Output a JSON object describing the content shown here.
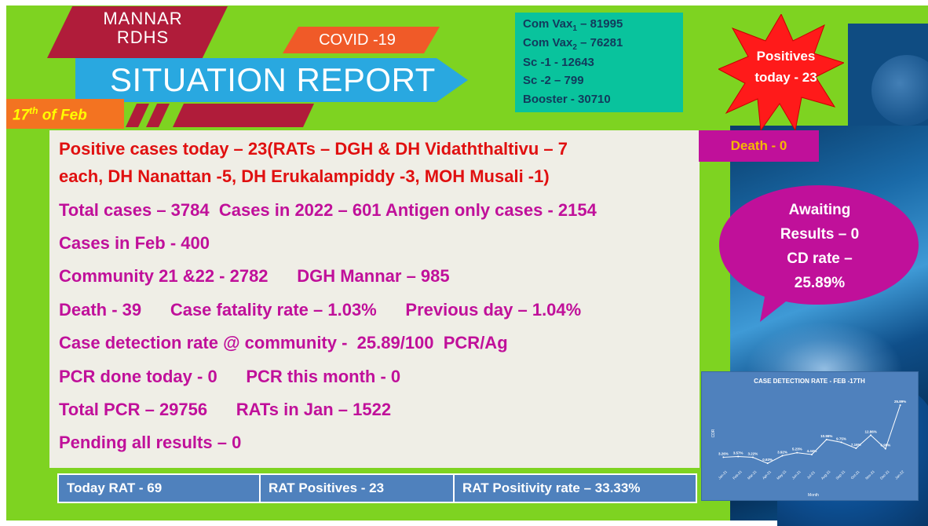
{
  "header": {
    "org_line1": "MANNAR",
    "org_line2": "RDHS",
    "covid_label": "COVID -19",
    "title": "SITUATION REPORT",
    "date_day": "17",
    "date_sup": "th",
    "date_rest": " of Feb"
  },
  "vaccination": {
    "com_vax1_prefix": "Com Vax",
    "com_vax1_sub": "1",
    "com_vax1_value": " – 81995",
    "com_vax2_prefix": "Com Vax",
    "com_vax2_sub": "2",
    "com_vax2_value": " – 76281",
    "sc1": "Sc -1 - 12643",
    "sc2": "Sc -2 – 799",
    "booster": "Booster - 30710"
  },
  "starburst": {
    "line1": "Positives",
    "line2": "today - 23"
  },
  "death_badge": "Death - 0",
  "bubble": {
    "line1": "Awaiting",
    "line2": "Results – 0",
    "line3": "CD rate –",
    "line4": "25.89%"
  },
  "report_lines": {
    "positive_today_1": "Positive cases today – 23(RATs – DGH & DH Vidaththaltivu – 7",
    "positive_today_2": "each, DH Nanattan -5, DH Erukalampiddy -3, MOH Musali -1)",
    "totals": "Total cases – 3784  Cases in 2022 – 601 Antigen only cases - 2154",
    "cases_feb": "Cases in Feb - 400",
    "community": "Community 21 &22 - 2782      DGH Mannar – 985",
    "death": "Death - 39      Case fatality rate – 1.03%      Previous day – 1.04%",
    "cdr": "Case detection rate @ community -  25.89/100  PCR/Ag",
    "pcr_today": "PCR done today - 0      PCR this month - 0",
    "total_pcr": "Total PCR – 29756      RATs in Jan – 1522",
    "pending": "Pending all results – 0"
  },
  "rat_table": {
    "today_rat": "Today RAT - 69",
    "rat_positives": "RAT Positives - 23",
    "positivity": "RAT Positivity rate – 33.33%"
  },
  "chart_data": {
    "type": "line",
    "title": "CASE DETECTION RATE - FEB -17TH",
    "xlabel": "Month",
    "ylabel": "CDR",
    "categories": [
      "Jan-21",
      "Feb-21",
      "Mar-21",
      "Apr-21",
      "May-21",
      "Jun-21",
      "Jul-21",
      "Aug-21",
      "Sep-21",
      "Oct-21",
      "Nov-21",
      "Dec-21",
      "Jan-22"
    ],
    "values": [
      3.26,
      3.57,
      3.22,
      0.63,
      3.92,
      5.23,
      4.44,
      10.96,
      9.75,
      7.16,
      12.86,
      6.95,
      25.89
    ],
    "data_labels": [
      "3.26%",
      "3.57%",
      "3.22%",
      "0.63%",
      "3.92%",
      "5.23%",
      "4.44%",
      "10.96%",
      "9.75%",
      "7.16%",
      "12.86%",
      "6.95%",
      "25.89%"
    ],
    "ylim": [
      0,
      30
    ],
    "grid": false,
    "colors": {
      "background": "#4f81bd",
      "line": "#ffffff"
    }
  }
}
